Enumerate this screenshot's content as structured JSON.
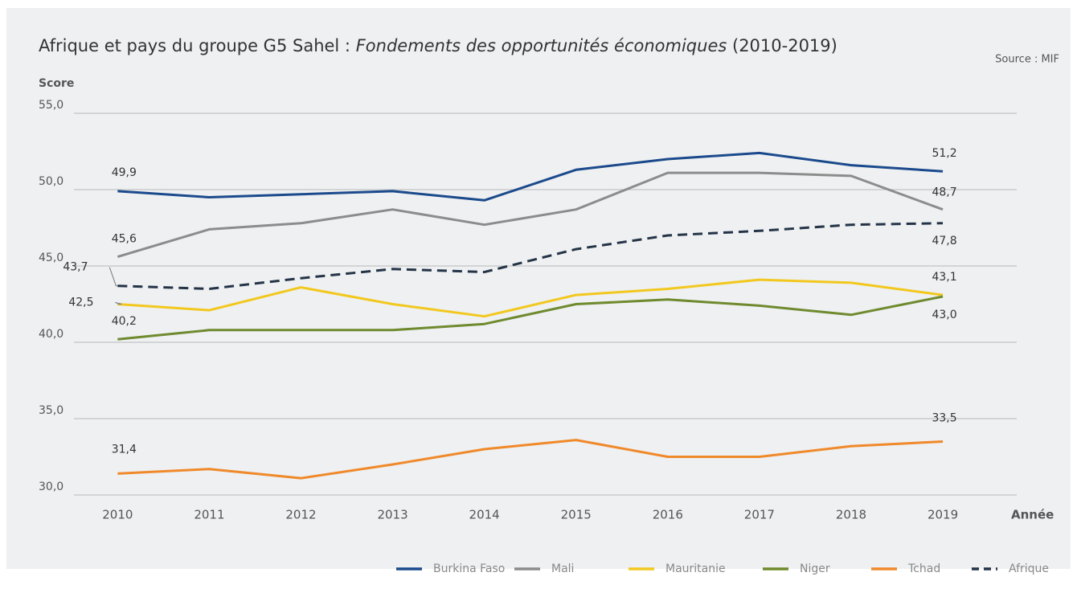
{
  "chart_data": {
    "type": "line",
    "title": [
      "Afrique et pays du groupe G5 Sahel :",
      "Fondements des opportunités économiques",
      "(2010-2019)"
    ],
    "source": "Source : MIF",
    "y_label": "Score",
    "x_label": "Année",
    "x": [
      2010,
      2011,
      2012,
      2013,
      2014,
      2015,
      2016,
      2017,
      2018,
      2019
    ],
    "xlim": [
      2009.55,
      2019.85
    ],
    "ylim": [
      30,
      55
    ],
    "yticks": [
      {
        "value": 30,
        "label": "30,0"
      },
      {
        "value": 35,
        "label": "35,0"
      },
      {
        "value": 40,
        "label": "40,0"
      },
      {
        "value": 45,
        "label": "45,0"
      },
      {
        "value": 50,
        "label": "50,0"
      },
      {
        "value": 55,
        "label": "55,0"
      }
    ],
    "grid": true,
    "legend": "bottom-right",
    "series": [
      {
        "name": "Burkina Faso",
        "color": "#1b4a8c",
        "values": [
          49.9,
          49.5,
          49.7,
          49.9,
          49.3,
          51.3,
          52.0,
          52.4,
          51.6,
          51.2
        ],
        "value_labels": [
          "49,9",
          null,
          null,
          null,
          null,
          null,
          null,
          null,
          null,
          "51,2"
        ]
      },
      {
        "name": "Mali",
        "color": "#8c8c8c",
        "values": [
          45.6,
          47.4,
          47.8,
          48.7,
          47.7,
          48.7,
          51.1,
          51.1,
          50.9,
          48.7
        ],
        "value_labels": [
          "45,6",
          null,
          null,
          null,
          null,
          null,
          null,
          null,
          null,
          "48,7"
        ]
      },
      {
        "name": "Mauritanie",
        "color": "#f2c81e",
        "values": [
          42.5,
          42.1,
          43.6,
          42.5,
          41.7,
          43.1,
          43.5,
          44.1,
          43.9,
          43.1
        ],
        "value_labels": [
          "42,5",
          null,
          null,
          null,
          null,
          null,
          null,
          null,
          null,
          "43,1"
        ]
      },
      {
        "name": "Niger",
        "color": "#6f8a2e",
        "values": [
          40.2,
          40.8,
          40.8,
          40.8,
          41.2,
          42.5,
          42.8,
          42.4,
          41.8,
          43.0
        ],
        "value_labels": [
          "40,2",
          null,
          null,
          null,
          null,
          null,
          null,
          null,
          null,
          "43,0"
        ]
      },
      {
        "name": "Tchad",
        "color": "#f0892a",
        "values": [
          31.4,
          31.7,
          31.1,
          32.0,
          33.0,
          33.6,
          32.5,
          32.5,
          33.2,
          33.5
        ],
        "value_labels": [
          "31,4",
          null,
          null,
          null,
          null,
          null,
          null,
          null,
          null,
          "33,5"
        ]
      },
      {
        "name": "Afrique",
        "color": "#243447",
        "dashed": true,
        "values": [
          43.7,
          43.5,
          44.2,
          44.8,
          44.6,
          46.1,
          47.0,
          47.3,
          47.7,
          47.8
        ],
        "value_labels": [
          "43,7",
          null,
          null,
          null,
          null,
          null,
          null,
          null,
          null,
          "47,8"
        ]
      }
    ]
  }
}
